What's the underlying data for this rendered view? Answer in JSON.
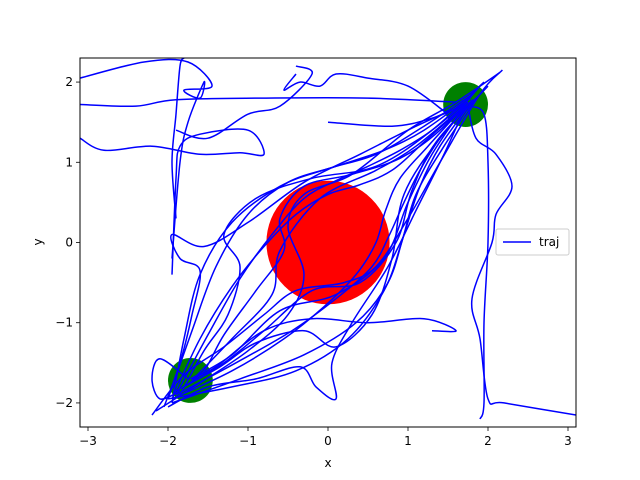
{
  "chart_data": {
    "type": "scatter",
    "title": "",
    "xlabel": "x",
    "ylabel": "y",
    "xlim": [
      -3.1,
      3.1
    ],
    "ylim": [
      -2.3,
      2.3
    ],
    "x_ticks": [
      -3,
      -2,
      -1,
      0,
      1,
      2,
      3
    ],
    "x_tick_labels": [
      "−3",
      "−2",
      "−1",
      "0",
      "1",
      "2",
      "3"
    ],
    "y_ticks": [
      -2,
      -1,
      0,
      1,
      2
    ],
    "y_tick_labels": [
      "−2",
      "−1",
      "0",
      "1",
      "2"
    ],
    "grid": false,
    "legend": {
      "placement": "center-right",
      "entries": [
        "traj"
      ]
    },
    "obstacles": [
      {
        "kind": "obstacle",
        "x": 0.0,
        "y": 0.0,
        "r": 0.77,
        "color": "#ff0000"
      },
      {
        "kind": "endpoint",
        "x": 1.72,
        "y": 1.72,
        "r": 0.28,
        "color": "#008000"
      },
      {
        "kind": "endpoint",
        "x": -1.72,
        "y": -1.72,
        "r": 0.28,
        "color": "#008000"
      }
    ],
    "series": [
      {
        "name": "traj",
        "color": "#0000ff",
        "paths": [
          [
            [
              -1.95,
              -1.95
            ],
            [
              -1.6,
              -1.2
            ],
            [
              -1.2,
              -0.55
            ],
            [
              -0.8,
              -0.05
            ],
            [
              -0.4,
              0.35
            ],
            [
              0.0,
              0.6
            ],
            [
              0.4,
              0.72
            ],
            [
              0.8,
              0.9
            ],
            [
              1.2,
              1.25
            ],
            [
              1.72,
              1.72
            ]
          ],
          [
            [
              -1.9,
              -1.9
            ],
            [
              -1.5,
              -1.15
            ],
            [
              -1.1,
              -0.45
            ],
            [
              -0.7,
              0.1
            ],
            [
              -0.3,
              0.55
            ],
            [
              0.1,
              0.77
            ],
            [
              0.5,
              0.95
            ],
            [
              0.9,
              1.15
            ],
            [
              1.3,
              1.4
            ],
            [
              1.78,
              1.8
            ]
          ],
          [
            [
              -2.0,
              -1.95
            ],
            [
              -1.7,
              -1.1
            ],
            [
              -1.4,
              -0.3
            ],
            [
              -1.0,
              0.35
            ],
            [
              -0.5,
              0.75
            ],
            [
              0.1,
              0.95
            ],
            [
              0.7,
              1.15
            ],
            [
              1.2,
              1.4
            ],
            [
              1.78,
              1.82
            ]
          ],
          [
            [
              -1.95,
              -2.0
            ],
            [
              -1.8,
              -1.2
            ],
            [
              -1.6,
              -0.4
            ],
            [
              -1.2,
              0.25
            ],
            [
              -0.6,
              0.7
            ],
            [
              0.0,
              0.92
            ],
            [
              0.6,
              1.1
            ],
            [
              1.2,
              1.45
            ],
            [
              1.8,
              1.85
            ]
          ],
          [
            [
              -1.95,
              -1.95
            ],
            [
              -1.2,
              -1.6
            ],
            [
              -0.55,
              -1.2
            ],
            [
              -0.05,
              -0.8
            ],
            [
              0.35,
              -0.4
            ],
            [
              0.6,
              0.0
            ],
            [
              0.72,
              0.4
            ],
            [
              0.9,
              0.8
            ],
            [
              1.25,
              1.2
            ],
            [
              1.75,
              1.75
            ]
          ],
          [
            [
              -1.9,
              -1.9
            ],
            [
              -1.15,
              -1.5
            ],
            [
              -0.45,
              -1.1
            ],
            [
              0.1,
              -0.7
            ],
            [
              0.55,
              -0.3
            ],
            [
              0.77,
              0.1
            ],
            [
              0.95,
              0.5
            ],
            [
              1.15,
              0.9
            ],
            [
              1.4,
              1.3
            ],
            [
              1.8,
              1.78
            ]
          ],
          [
            [
              -1.95,
              -2.0
            ],
            [
              -1.1,
              -1.7
            ],
            [
              -0.3,
              -1.4
            ],
            [
              0.35,
              -1.0
            ],
            [
              0.75,
              -0.5
            ],
            [
              0.95,
              0.1
            ],
            [
              1.15,
              0.7
            ],
            [
              1.4,
              1.2
            ],
            [
              1.82,
              1.78
            ]
          ],
          [
            [
              -2.0,
              -1.95
            ],
            [
              -1.2,
              -1.8
            ],
            [
              -0.4,
              -1.6
            ],
            [
              0.25,
              -1.2
            ],
            [
              0.7,
              -0.6
            ],
            [
              0.92,
              0.0
            ],
            [
              1.1,
              0.6
            ],
            [
              1.45,
              1.2
            ],
            [
              1.85,
              1.8
            ]
          ],
          [
            [
              -1.7,
              -1.72
            ],
            [
              -1.2,
              -1.2
            ],
            [
              -0.7,
              -0.65
            ],
            [
              -0.6,
              -0.1
            ],
            [
              -0.1,
              0.55
            ],
            [
              0.6,
              0.9
            ],
            [
              1.1,
              1.2
            ],
            [
              1.72,
              1.72
            ]
          ],
          [
            [
              -1.72,
              -1.7
            ],
            [
              -1.2,
              -1.4
            ],
            [
              -0.6,
              -0.85
            ],
            [
              0.1,
              -0.65
            ],
            [
              0.7,
              -0.2
            ],
            [
              1.0,
              0.5
            ],
            [
              1.3,
              1.1
            ],
            [
              1.72,
              1.72
            ]
          ],
          [
            [
              -1.8,
              -1.8
            ],
            [
              -1.55,
              -1.6
            ],
            [
              -1.3,
              -1.15
            ],
            [
              -0.9,
              -0.6
            ],
            [
              -0.55,
              -0.1
            ],
            [
              -0.6,
              0.3
            ],
            [
              -0.3,
              0.7
            ],
            [
              0.3,
              0.85
            ],
            [
              0.9,
              1.05
            ],
            [
              1.4,
              1.4
            ],
            [
              1.9,
              1.95
            ]
          ],
          [
            [
              -1.8,
              -1.8
            ],
            [
              -1.3,
              -1.5
            ],
            [
              -0.8,
              -1.1
            ],
            [
              -0.2,
              -0.6
            ],
            [
              0.4,
              -0.5
            ],
            [
              0.85,
              0.0
            ],
            [
              1.05,
              0.65
            ],
            [
              1.35,
              1.25
            ],
            [
              1.95,
              1.9
            ]
          ],
          [
            [
              -1.85,
              -1.9
            ],
            [
              -1.55,
              -1.35
            ],
            [
              -1.25,
              -0.9
            ],
            [
              -1.1,
              -0.3
            ],
            [
              -1.3,
              0.1
            ],
            [
              -0.9,
              0.55
            ],
            [
              -0.2,
              0.8
            ],
            [
              0.6,
              0.95
            ],
            [
              1.3,
              1.4
            ],
            [
              1.95,
              2.0
            ]
          ],
          [
            [
              -1.9,
              -1.85
            ],
            [
              -1.35,
              -1.55
            ],
            [
              -0.9,
              -1.25
            ],
            [
              -0.3,
              -1.1
            ],
            [
              0.1,
              -1.3
            ],
            [
              0.55,
              -0.9
            ],
            [
              0.8,
              -0.2
            ],
            [
              0.95,
              0.6
            ],
            [
              1.4,
              1.3
            ],
            [
              2.0,
              1.95
            ]
          ],
          [
            [
              -2.2,
              -2.15
            ],
            [
              -1.8,
              -1.65
            ],
            [
              -1.3,
              -1.3
            ],
            [
              -0.8,
              -0.9
            ],
            [
              -0.4,
              -0.6
            ],
            [
              0.2,
              -0.5
            ],
            [
              0.6,
              -0.3
            ],
            [
              1.0,
              0.3
            ],
            [
              1.4,
              1.0
            ],
            [
              1.9,
              1.85
            ],
            [
              2.18,
              2.15
            ]
          ],
          [
            [
              -2.15,
              -2.1
            ],
            [
              -1.6,
              -1.75
            ],
            [
              -1.0,
              -1.35
            ],
            [
              -0.5,
              -0.9
            ],
            [
              -0.3,
              -0.4
            ],
            [
              -0.5,
              0.2
            ],
            [
              -0.3,
              0.6
            ],
            [
              0.3,
              0.85
            ],
            [
              1.0,
              1.4
            ],
            [
              1.6,
              1.75
            ],
            [
              2.15,
              2.12
            ]
          ],
          [
            [
              -2.05,
              -2.05
            ],
            [
              -1.85,
              -1.5
            ],
            [
              -1.7,
              -0.9
            ],
            [
              -1.6,
              -0.35
            ],
            [
              -1.85,
              -0.2
            ],
            [
              -1.95,
              0.1
            ],
            [
              -1.55,
              -0.05
            ],
            [
              -1.0,
              0.25
            ],
            [
              -0.3,
              0.75
            ],
            [
              0.4,
              1.1
            ],
            [
              1.1,
              1.45
            ],
            [
              1.7,
              1.72
            ]
          ],
          [
            [
              -2.0,
              -2.05
            ],
            [
              -1.5,
              -1.8
            ],
            [
              -0.9,
              -1.7
            ],
            [
              -0.35,
              -1.55
            ],
            [
              -0.15,
              -1.8
            ],
            [
              0.1,
              -1.95
            ],
            [
              0.05,
              -1.5
            ],
            [
              0.3,
              -1.0
            ],
            [
              0.75,
              -0.3
            ],
            [
              1.1,
              0.4
            ],
            [
              1.45,
              1.1
            ],
            [
              1.72,
              1.7
            ]
          ],
          [
            [
              1.72,
              1.72
            ],
            [
              1.3,
              1.55
            ],
            [
              0.8,
              1.45
            ],
            [
              0.0,
              1.5
            ]
          ],
          [
            [
              1.5,
              1.6
            ],
            [
              1.0,
              1.95
            ],
            [
              0.5,
              2.05
            ],
            [
              0.1,
              2.1
            ],
            [
              -0.1,
              1.95
            ],
            [
              -0.35,
              2.0
            ],
            [
              -0.55,
              1.9
            ],
            [
              -0.4,
              2.1
            ]
          ],
          [
            [
              1.6,
              1.75
            ],
            [
              0.5,
              1.8
            ],
            [
              -0.8,
              1.8
            ],
            [
              -1.9,
              1.78
            ],
            [
              -2.4,
              1.7
            ],
            [
              -3.1,
              1.72
            ]
          ],
          [
            [
              -1.95,
              -0.4
            ],
            [
              -1.9,
              0.8
            ],
            [
              -1.85,
              1.2
            ],
            [
              -1.6,
              1.35
            ],
            [
              -1.0,
              1.4
            ],
            [
              -0.8,
              1.1
            ],
            [
              -1.1,
              1.12
            ],
            [
              -1.6,
              1.1
            ],
            [
              -2.2,
              1.2
            ],
            [
              -2.8,
              1.15
            ],
            [
              -3.1,
              1.3
            ]
          ],
          [
            [
              -1.9,
              0.3
            ],
            [
              -1.95,
              1.0
            ],
            [
              -1.9,
              1.6
            ],
            [
              -1.85,
              2.2
            ],
            [
              -1.8,
              2.3
            ]
          ],
          [
            [
              -1.95,
              -0.2
            ],
            [
              -1.85,
              1.0
            ],
            [
              -1.75,
              1.5
            ],
            [
              -1.55,
              2.0
            ],
            [
              -1.6,
              1.8
            ],
            [
              -1.8,
              1.9
            ],
            [
              -1.45,
              1.95
            ],
            [
              -1.75,
              2.25
            ],
            [
              -2.3,
              2.25
            ],
            [
              -3.1,
              2.05
            ]
          ],
          [
            [
              -1.9,
              1.4
            ],
            [
              -1.5,
              1.3
            ],
            [
              -1.0,
              1.6
            ],
            [
              -0.6,
              1.7
            ],
            [
              -0.2,
              2.1
            ],
            [
              -0.4,
              2.2
            ]
          ],
          [
            [
              1.75,
              1.7
            ],
            [
              1.85,
              1.3
            ],
            [
              2.1,
              1.1
            ],
            [
              2.3,
              0.7
            ],
            [
              2.1,
              0.35
            ],
            [
              2.05,
              0.0
            ],
            [
              1.8,
              -0.7
            ],
            [
              1.9,
              -1.2
            ],
            [
              2.0,
              -1.95
            ],
            [
              2.2,
              -2.0
            ],
            [
              3.1,
              -2.15
            ]
          ],
          [
            [
              1.75,
              1.7
            ],
            [
              1.95,
              1.6
            ],
            [
              2.0,
              1.0
            ],
            [
              2.0,
              0.0
            ],
            [
              1.95,
              -1.0
            ],
            [
              1.95,
              -2.0
            ],
            [
              1.9,
              -2.2
            ]
          ],
          [
            [
              -1.7,
              -1.7
            ],
            [
              -1.4,
              -1.55
            ],
            [
              -0.8,
              -1.1
            ],
            [
              -0.2,
              -0.95
            ],
            [
              0.5,
              -1.0
            ],
            [
              1.2,
              -0.95
            ],
            [
              1.6,
              -1.1
            ],
            [
              1.3,
              -1.1
            ]
          ],
          [
            [
              -1.75,
              -1.7
            ],
            [
              -2.1,
              -1.45
            ],
            [
              -2.2,
              -1.7
            ],
            [
              -2.1,
              -1.95
            ],
            [
              -1.85,
              -1.85
            ]
          ]
        ]
      }
    ]
  }
}
